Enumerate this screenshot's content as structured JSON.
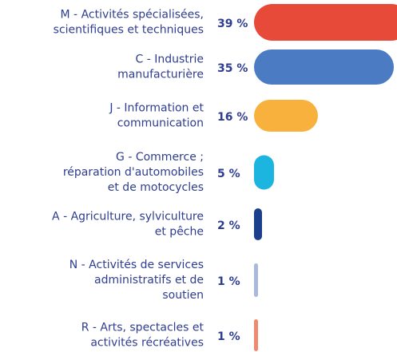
{
  "chart_data": {
    "type": "bar",
    "orientation": "horizontal",
    "categories": [
      [
        "M - Activités spécialisées,",
        "scientifiques et techniques"
      ],
      [
        "C - Industrie",
        "manufacturière"
      ],
      [
        "J - Information et",
        "communication"
      ],
      [
        "G - Commerce ;",
        "réparation d'automobiles",
        "et de motocycles"
      ],
      [
        "A - Agriculture, sylviculture",
        "et pêche"
      ],
      [
        "N - Activités de services",
        "administratifs et de",
        "soutien"
      ],
      [
        "R  - Arts, spectacles et",
        "activités récréatives"
      ]
    ],
    "values": [
      39,
      35,
      16,
      5,
      2,
      1,
      1
    ],
    "value_labels": [
      "39 %",
      "35 %",
      "16 %",
      "5 %",
      "2 %",
      "1 %",
      "1 %"
    ],
    "colors": [
      "#e84a39",
      "#4a7bc3",
      "#f7b13c",
      "#1cb5df",
      "#1b3f8b",
      "#a9b8dc",
      "#ef8a6f"
    ]
  }
}
